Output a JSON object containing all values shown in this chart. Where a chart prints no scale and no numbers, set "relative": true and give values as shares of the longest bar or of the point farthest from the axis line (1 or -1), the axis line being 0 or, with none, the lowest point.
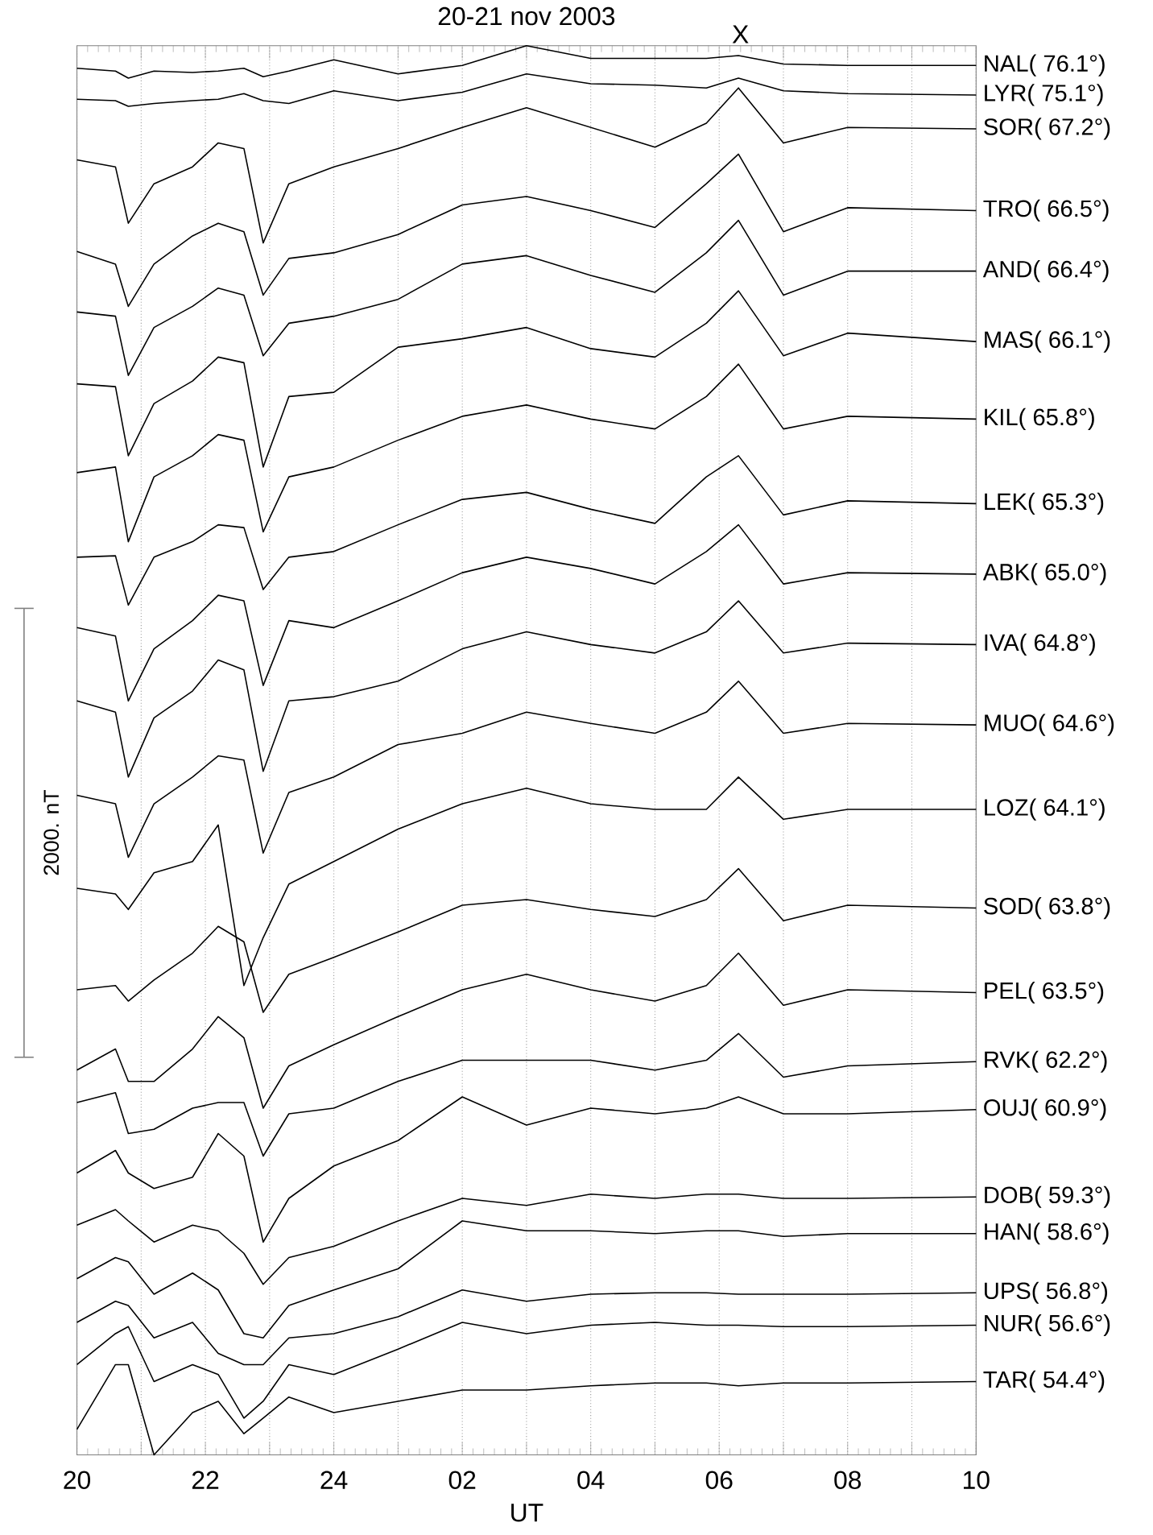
{
  "chart_data": {
    "type": "line",
    "title": "20-21 nov 2003",
    "xlabel": "UT",
    "relative": true,
    "grid": "x",
    "xlim": [
      "2003-11-20T20:00",
      "2003-11-21T10:00"
    ],
    "xticks": [
      {
        "value": "2003-11-20T20:00",
        "label": "20"
      },
      {
        "value": "2003-11-20T21:00",
        "label": null
      },
      {
        "value": "2003-11-20T22:00",
        "label": "22"
      },
      {
        "value": "2003-11-20T23:00",
        "label": null
      },
      {
        "value": "2003-11-21T00:00",
        "label": "24"
      },
      {
        "value": "2003-11-21T01:00",
        "label": null
      },
      {
        "value": "2003-11-21T02:00",
        "label": "02"
      },
      {
        "value": "2003-11-21T03:00",
        "label": null
      },
      {
        "value": "2003-11-21T04:00",
        "label": "04"
      },
      {
        "value": "2003-11-21T05:00",
        "label": null
      },
      {
        "value": "2003-11-21T06:00",
        "label": "06"
      },
      {
        "value": "2003-11-21T07:00",
        "label": null
      },
      {
        "value": "2003-11-21T08:00",
        "label": "08"
      },
      {
        "value": "2003-11-21T09:00",
        "label": null
      },
      {
        "value": "2003-11-21T10:00",
        "label": "10"
      }
    ],
    "annotations": [
      "2000. nT",
      "X"
    ],
    "x": [
      "2003-11-20T20:00",
      "2003-11-20T20:36",
      "2003-11-20T20:48",
      "2003-11-20T21:12",
      "2003-11-20T21:48",
      "2003-11-20T22:12",
      "2003-11-20T22:36",
      "2003-11-20T22:54",
      "2003-11-20T23:18",
      "2003-11-21T00:00",
      "2003-11-21T01:00",
      "2003-11-21T02:00",
      "2003-11-21T03:00",
      "2003-11-21T04:00",
      "2003-11-21T05:00",
      "2003-11-21T05:48",
      "2003-11-21T06:18",
      "2003-11-21T07:00",
      "2003-11-21T08:00",
      "2003-11-21T10:00"
    ],
    "series": [
      {
        "name": "NAL( 76.1°)",
        "color": "#000000",
        "values": [
          0.984,
          0.982,
          0.977,
          0.982,
          0.981,
          0.982,
          0.984,
          0.978,
          0.982,
          0.99,
          0.98,
          0.986,
          1.0,
          0.991,
          0.991,
          0.991,
          0.993,
          0.987,
          0.986,
          0.986
        ]
      },
      {
        "name": "LYR( 75.1°)",
        "color": "#000000",
        "values": [
          0.962,
          0.961,
          0.957,
          0.959,
          0.961,
          0.962,
          0.966,
          0.961,
          0.959,
          0.968,
          0.961,
          0.967,
          0.98,
          0.973,
          0.972,
          0.97,
          0.977,
          0.968,
          0.966,
          0.965
        ]
      },
      {
        "name": "SOR( 67.2°)",
        "color": "#000000",
        "values": [
          0.919,
          0.914,
          0.874,
          0.902,
          0.914,
          0.931,
          0.927,
          0.86,
          0.902,
          0.914,
          0.927,
          0.942,
          0.956,
          0.942,
          0.928,
          0.945,
          0.97,
          0.931,
          0.942,
          0.941
        ]
      },
      {
        "name": "TRO( 66.5°)",
        "color": "#000000",
        "values": [
          0.854,
          0.845,
          0.815,
          0.845,
          0.865,
          0.874,
          0.868,
          0.823,
          0.849,
          0.853,
          0.866,
          0.887,
          0.893,
          0.883,
          0.871,
          0.902,
          0.923,
          0.868,
          0.885,
          0.883
        ]
      },
      {
        "name": "AND( 66.4°)",
        "color": "#000000",
        "values": [
          0.811,
          0.808,
          0.766,
          0.8,
          0.815,
          0.828,
          0.823,
          0.78,
          0.803,
          0.808,
          0.82,
          0.845,
          0.851,
          0.837,
          0.825,
          0.853,
          0.876,
          0.823,
          0.84,
          0.84
        ]
      },
      {
        "name": "MAS( 66.1°)",
        "color": "#000000",
        "values": [
          0.76,
          0.758,
          0.709,
          0.746,
          0.762,
          0.779,
          0.775,
          0.701,
          0.751,
          0.754,
          0.786,
          0.792,
          0.8,
          0.785,
          0.779,
          0.803,
          0.826,
          0.78,
          0.796,
          0.79
        ]
      },
      {
        "name": "KIL( 65.8°)",
        "color": "#000000",
        "values": [
          0.697,
          0.701,
          0.648,
          0.694,
          0.709,
          0.724,
          0.72,
          0.655,
          0.694,
          0.701,
          0.72,
          0.737,
          0.745,
          0.735,
          0.728,
          0.751,
          0.774,
          0.728,
          0.737,
          0.735
        ]
      },
      {
        "name": "LEK( 65.3°)",
        "color": "#000000",
        "values": [
          0.637,
          0.638,
          0.603,
          0.637,
          0.648,
          0.66,
          0.658,
          0.614,
          0.637,
          0.641,
          0.66,
          0.678,
          0.683,
          0.671,
          0.661,
          0.694,
          0.709,
          0.667,
          0.677,
          0.675
        ]
      },
      {
        "name": "ABK( 65.0°)",
        "color": "#000000",
        "values": [
          0.587,
          0.581,
          0.535,
          0.572,
          0.592,
          0.61,
          0.606,
          0.546,
          0.592,
          0.587,
          0.606,
          0.626,
          0.637,
          0.629,
          0.618,
          0.641,
          0.66,
          0.618,
          0.626,
          0.625
        ]
      },
      {
        "name": "IVA( 64.8°)",
        "color": "#000000",
        "values": [
          0.535,
          0.527,
          0.481,
          0.523,
          0.542,
          0.564,
          0.557,
          0.485,
          0.535,
          0.538,
          0.549,
          0.572,
          0.584,
          0.575,
          0.569,
          0.584,
          0.606,
          0.569,
          0.576,
          0.575
        ]
      },
      {
        "name": "MUO( 64.6°)",
        "color": "#000000",
        "values": [
          0.468,
          0.462,
          0.424,
          0.462,
          0.481,
          0.496,
          0.493,
          0.427,
          0.47,
          0.481,
          0.504,
          0.512,
          0.527,
          0.519,
          0.512,
          0.527,
          0.549,
          0.512,
          0.519,
          0.518
        ]
      },
      {
        "name": "LOZ( 64.1°)",
        "color": "#000000",
        "values": [
          0.402,
          0.398,
          0.387,
          0.413,
          0.421,
          0.447,
          0.333,
          0.367,
          0.405,
          0.421,
          0.444,
          0.462,
          0.473,
          0.462,
          0.458,
          0.458,
          0.481,
          0.451,
          0.458,
          0.458
        ]
      },
      {
        "name": "SOD( 63.8°)",
        "color": "#000000",
        "values": [
          0.33,
          0.333,
          0.322,
          0.337,
          0.356,
          0.375,
          0.364,
          0.314,
          0.341,
          0.353,
          0.371,
          0.39,
          0.394,
          0.387,
          0.382,
          0.394,
          0.416,
          0.379,
          0.39,
          0.388
        ]
      },
      {
        "name": "PEL( 63.5°)",
        "color": "#000000",
        "values": [
          0.273,
          0.288,
          0.265,
          0.265,
          0.288,
          0.311,
          0.296,
          0.246,
          0.276,
          0.291,
          0.311,
          0.33,
          0.341,
          0.33,
          0.322,
          0.333,
          0.356,
          0.319,
          0.33,
          0.328
        ]
      },
      {
        "name": "RVK( 62.2°)",
        "color": "#000000",
        "values": [
          0.25,
          0.257,
          0.228,
          0.231,
          0.246,
          0.25,
          0.25,
          0.212,
          0.242,
          0.246,
          0.265,
          0.28,
          0.28,
          0.28,
          0.273,
          0.28,
          0.299,
          0.268,
          0.276,
          0.279
        ]
      },
      {
        "name": "OUJ( 60.9°)",
        "color": "#000000",
        "values": [
          0.2,
          0.216,
          0.2,
          0.189,
          0.197,
          0.228,
          0.212,
          0.151,
          0.182,
          0.205,
          0.223,
          0.254,
          0.234,
          0.246,
          0.242,
          0.246,
          0.254,
          0.242,
          0.242,
          0.245
        ]
      },
      {
        "name": "DOB( 59.3°)",
        "color": "#000000",
        "values": [
          0.163,
          0.174,
          0.166,
          0.151,
          0.163,
          0.159,
          0.143,
          0.121,
          0.14,
          0.148,
          0.166,
          0.182,
          0.177,
          0.185,
          0.182,
          0.185,
          0.185,
          0.182,
          0.182,
          0.183
        ]
      },
      {
        "name": "HAN( 58.6°)",
        "color": "#000000",
        "values": [
          0.125,
          0.14,
          0.137,
          0.114,
          0.129,
          0.117,
          0.086,
          0.083,
          0.106,
          0.117,
          0.132,
          0.166,
          0.159,
          0.159,
          0.157,
          0.159,
          0.159,
          0.155,
          0.157,
          0.157
        ]
      },
      {
        "name": "UPS( 56.8°)",
        "color": "#000000",
        "values": [
          0.094,
          0.109,
          0.106,
          0.083,
          0.094,
          0.072,
          0.064,
          0.064,
          0.083,
          0.086,
          0.098,
          0.117,
          0.109,
          0.114,
          0.115,
          0.115,
          0.114,
          0.114,
          0.114,
          0.115
        ]
      },
      {
        "name": "NUR( 56.6°)",
        "color": "#000000",
        "values": [
          0.064,
          0.086,
          0.091,
          0.052,
          0.064,
          0.057,
          0.026,
          0.038,
          0.064,
          0.057,
          0.075,
          0.094,
          0.086,
          0.092,
          0.094,
          0.092,
          0.092,
          0.091,
          0.091,
          0.092
        ]
      },
      {
        "name": "TAR( 54.4°)",
        "color": "#000000",
        "values": [
          0.018,
          0.064,
          0.064,
          0,
          0.03,
          0.038,
          0.015,
          0.026,
          0.041,
          0.03,
          0.038,
          0.046,
          0.046,
          0.049,
          0.051,
          0.051,
          0.049,
          0.051,
          0.051,
          0.052
        ]
      }
    ]
  }
}
